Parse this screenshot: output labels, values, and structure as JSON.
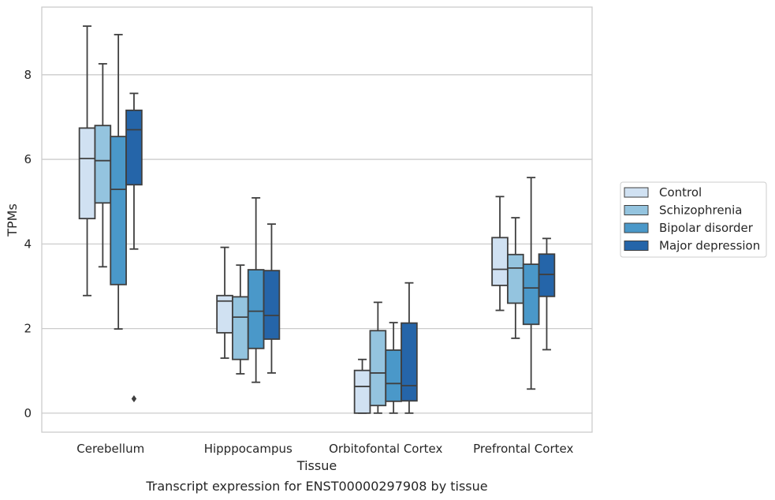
{
  "chart_data": {
    "type": "box",
    "xlabel": "Tissue",
    "ylabel": "TPMs",
    "caption": "Transcript expression for ENST00000297908 by tissue",
    "ylim": [
      -0.45,
      9.6
    ],
    "yticks": [
      0,
      2,
      4,
      6,
      8
    ],
    "grid": "horizontal",
    "legend_position": "right",
    "categories": [
      "Cerebellum",
      "Hipppocampus",
      "Orbitofontal Cortex",
      "Prefrontal Cortex"
    ],
    "series": [
      {
        "name": "Control",
        "color": "#d0e1f2",
        "boxes": [
          {
            "min": 2.78,
            "q1": 4.6,
            "median": 6.02,
            "q3": 6.74,
            "max": 9.15,
            "outliers": []
          },
          {
            "min": 1.3,
            "q1": 1.9,
            "median": 2.65,
            "q3": 2.78,
            "max": 3.92,
            "outliers": []
          },
          {
            "min": 0.0,
            "q1": 0.0,
            "median": 0.63,
            "q3": 1.01,
            "max": 1.27,
            "outliers": []
          },
          {
            "min": 2.43,
            "q1": 3.02,
            "median": 3.4,
            "q3": 4.15,
            "max": 5.12,
            "outliers": []
          }
        ]
      },
      {
        "name": "Schizophrenia",
        "color": "#94c4df",
        "boxes": [
          {
            "min": 3.46,
            "q1": 4.97,
            "median": 5.97,
            "q3": 6.8,
            "max": 8.26,
            "outliers": []
          },
          {
            "min": 0.93,
            "q1": 1.27,
            "median": 2.27,
            "q3": 2.75,
            "max": 3.5,
            "outliers": []
          },
          {
            "min": 0.0,
            "q1": 0.18,
            "median": 0.95,
            "q3": 1.95,
            "max": 2.62,
            "outliers": []
          },
          {
            "min": 1.77,
            "q1": 2.6,
            "median": 3.43,
            "q3": 3.75,
            "max": 4.62,
            "outliers": []
          }
        ]
      },
      {
        "name": "Bipolar disorder",
        "color": "#4a98c9",
        "boxes": [
          {
            "min": 1.99,
            "q1": 3.04,
            "median": 5.29,
            "q3": 6.54,
            "max": 8.95,
            "outliers": []
          },
          {
            "min": 0.73,
            "q1": 1.53,
            "median": 2.41,
            "q3": 3.39,
            "max": 5.09,
            "outliers": []
          },
          {
            "min": 0.0,
            "q1": 0.28,
            "median": 0.7,
            "q3": 1.49,
            "max": 2.14,
            "outliers": []
          },
          {
            "min": 0.57,
            "q1": 2.1,
            "median": 2.96,
            "q3": 3.52,
            "max": 5.57,
            "outliers": []
          }
        ]
      },
      {
        "name": "Major depression",
        "color": "#2565a9",
        "boxes": [
          {
            "min": 3.88,
            "q1": 5.4,
            "median": 6.7,
            "q3": 7.16,
            "max": 7.56,
            "outliers": [
              0.34
            ]
          },
          {
            "min": 0.95,
            "q1": 1.75,
            "median": 2.31,
            "q3": 3.37,
            "max": 4.47,
            "outliers": []
          },
          {
            "min": 0.0,
            "q1": 0.29,
            "median": 0.65,
            "q3": 2.13,
            "max": 3.08,
            "outliers": []
          },
          {
            "min": 1.5,
            "q1": 2.76,
            "median": 3.28,
            "q3": 3.76,
            "max": 4.13,
            "outliers": []
          }
        ]
      }
    ]
  }
}
